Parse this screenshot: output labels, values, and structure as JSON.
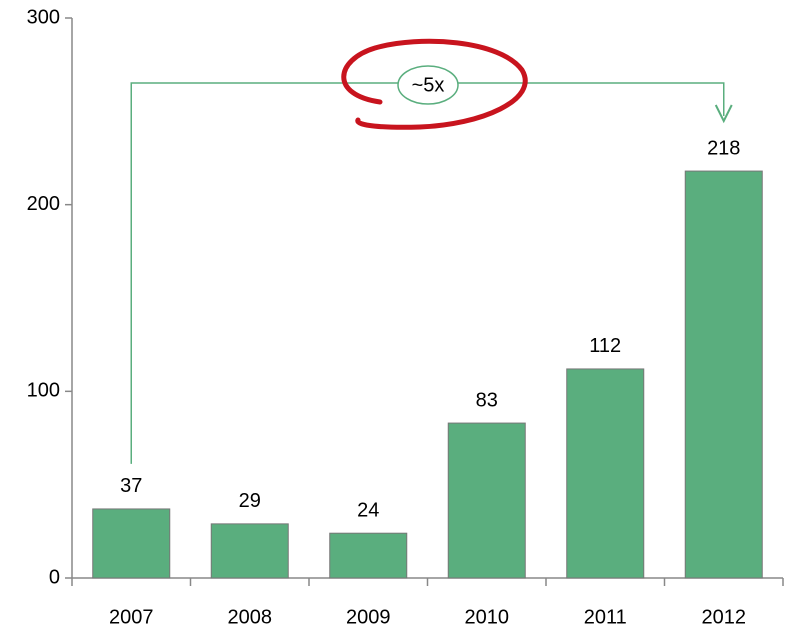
{
  "chart_data": {
    "type": "bar",
    "categories": [
      "2007",
      "2008",
      "2009",
      "2010",
      "2011",
      "2012"
    ],
    "values": [
      37,
      29,
      24,
      83,
      112,
      218
    ],
    "color": "#5aae7e",
    "ylim": [
      0,
      300
    ],
    "yticks": [
      0,
      100,
      200,
      300
    ],
    "annotation": "~5x"
  }
}
